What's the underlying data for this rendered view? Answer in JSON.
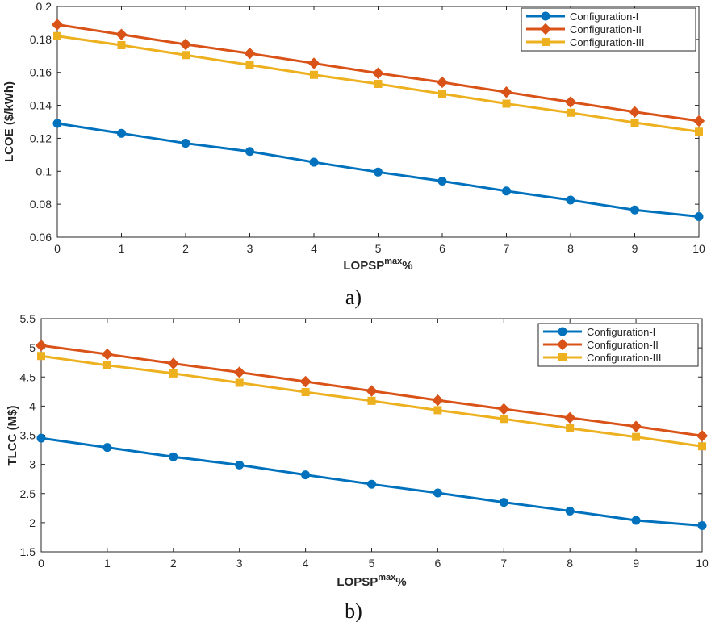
{
  "chart_data": [
    {
      "type": "line",
      "panel": "a)",
      "x": [
        0,
        1,
        2,
        3,
        4,
        5,
        6,
        7,
        8,
        9,
        10
      ],
      "xlim": [
        0,
        10
      ],
      "ylim": [
        0.06,
        0.2
      ],
      "xticks": [
        "0",
        "1",
        "2",
        "3",
        "4",
        "5",
        "6",
        "7",
        "8",
        "9",
        "10"
      ],
      "yticks": [
        "0.06",
        "0.08",
        "0.1",
        "0.12",
        "0.14",
        "0.16",
        "0.18",
        "0.2"
      ],
      "ytick_values": [
        0.06,
        0.08,
        0.1,
        0.12,
        0.14,
        0.16,
        0.18,
        0.2
      ],
      "xlabel_main": "LOPSP",
      "xlabel_sup": "max",
      "xlabel_tail": "%",
      "ylabel": "LCOE ($/kWh)",
      "legend_position": "top-right",
      "series": [
        {
          "name": "Configuration-I",
          "color": "#0072BD",
          "marker": "circle",
          "values": [
            0.129,
            0.123,
            0.117,
            0.112,
            0.1055,
            0.0995,
            0.094,
            0.088,
            0.0825,
            0.0765,
            0.0725
          ]
        },
        {
          "name": "Configuration-II",
          "color": "#D95319",
          "marker": "diamond",
          "values": [
            0.189,
            0.183,
            0.177,
            0.1715,
            0.1655,
            0.1595,
            0.154,
            0.148,
            0.142,
            0.136,
            0.1305
          ]
        },
        {
          "name": "Configuration-III",
          "color": "#EDB120",
          "marker": "square",
          "values": [
            0.182,
            0.1765,
            0.1705,
            0.1645,
            0.1585,
            0.153,
            0.147,
            0.141,
            0.1355,
            0.1295,
            0.124
          ]
        }
      ]
    },
    {
      "type": "line",
      "panel": "b)",
      "x": [
        0,
        1,
        2,
        3,
        4,
        5,
        6,
        7,
        8,
        9,
        10
      ],
      "xlim": [
        0,
        10
      ],
      "ylim": [
        1.5,
        5.5
      ],
      "xticks": [
        "0",
        "1",
        "2",
        "3",
        "4",
        "5",
        "6",
        "7",
        "8",
        "9",
        "10"
      ],
      "yticks": [
        "1.5",
        "2",
        "2.5",
        "3",
        "3.5",
        "4",
        "4.5",
        "5",
        "5.5"
      ],
      "ytick_values": [
        1.5,
        2,
        2.5,
        3,
        3.5,
        4,
        4.5,
        5,
        5.5
      ],
      "xlabel_main": "LOPSP",
      "xlabel_sup": "max",
      "xlabel_tail": "%",
      "ylabel": "TLCC (M$)",
      "legend_position": "top-right",
      "series": [
        {
          "name": "Configuration-I",
          "color": "#0072BD",
          "marker": "circle",
          "values": [
            3.45,
            3.29,
            3.13,
            2.99,
            2.82,
            2.66,
            2.51,
            2.35,
            2.2,
            2.04,
            1.95
          ]
        },
        {
          "name": "Configuration-II",
          "color": "#D95319",
          "marker": "diamond",
          "values": [
            5.04,
            4.89,
            4.73,
            4.58,
            4.42,
            4.26,
            4.1,
            3.95,
            3.8,
            3.65,
            3.49
          ]
        },
        {
          "name": "Configuration-III",
          "color": "#EDB120",
          "marker": "square",
          "values": [
            4.86,
            4.7,
            4.56,
            4.4,
            4.24,
            4.09,
            3.93,
            3.78,
            3.62,
            3.47,
            3.31
          ]
        }
      ]
    }
  ]
}
